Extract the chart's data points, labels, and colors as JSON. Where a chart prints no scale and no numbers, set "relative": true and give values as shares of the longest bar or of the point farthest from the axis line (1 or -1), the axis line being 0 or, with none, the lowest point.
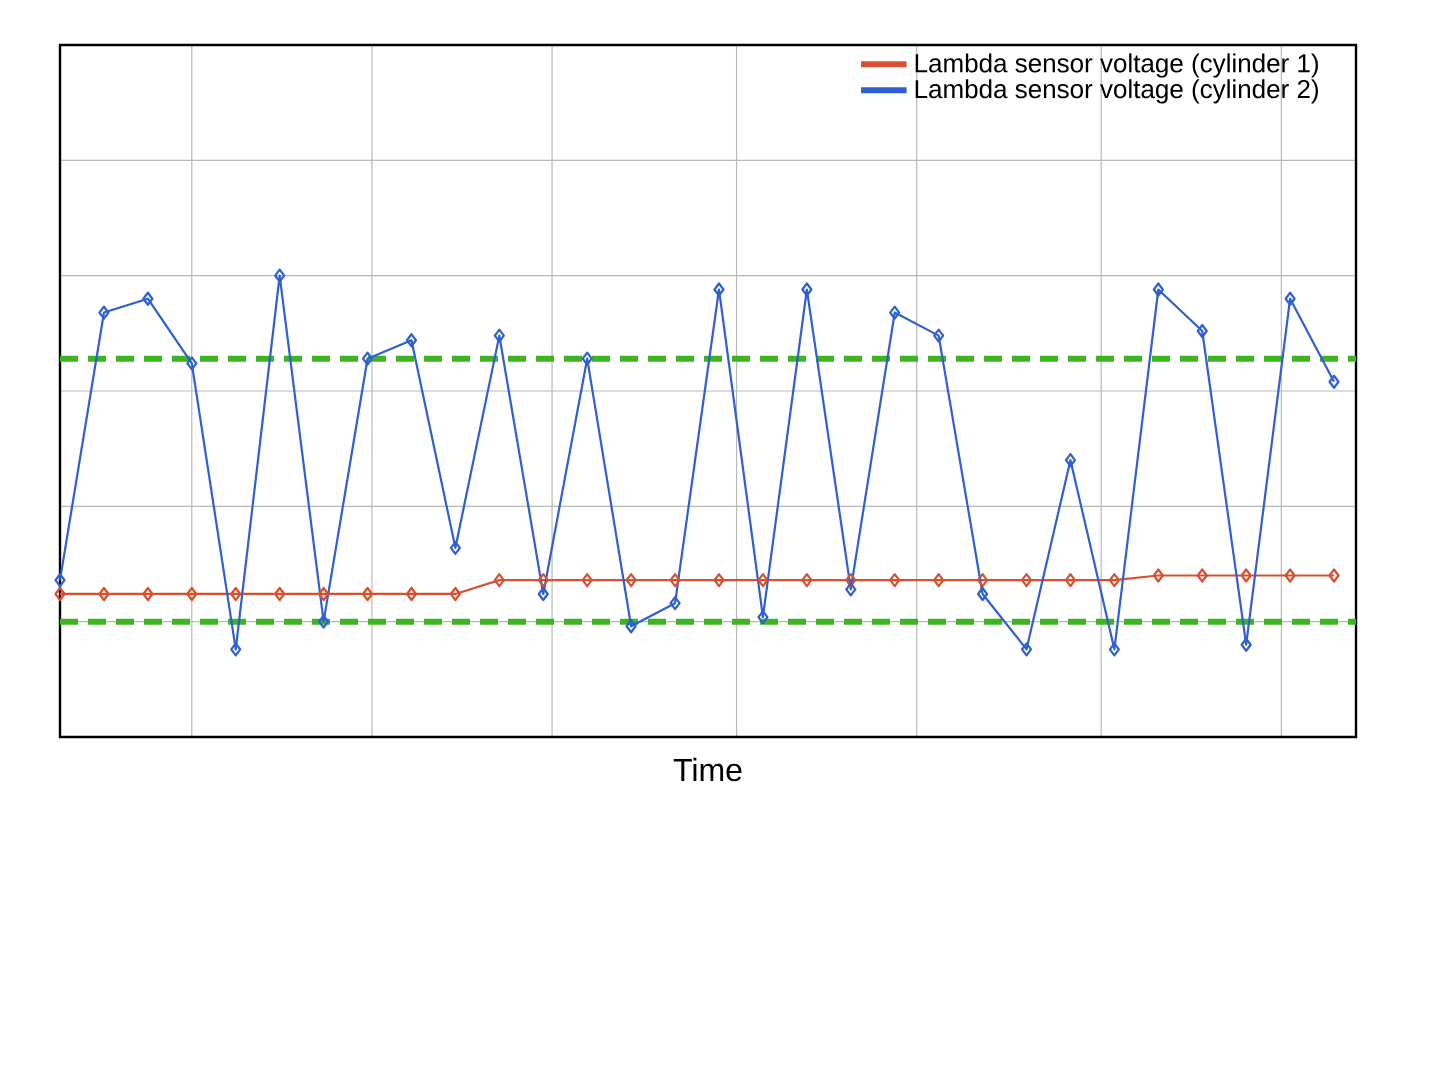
{
  "chart_data": {
    "type": "line",
    "xlabel": "Time",
    "relative": true,
    "grid": true,
    "legend": "top right",
    "marker": "diamond",
    "line_style": "solid",
    "categories": [
      null,
      null,
      null,
      null,
      null,
      null,
      null,
      null,
      null,
      null,
      null,
      null,
      null,
      null,
      null,
      null,
      null,
      null,
      null,
      null,
      null,
      null,
      null,
      null,
      null,
      null,
      null,
      null,
      null,
      null
    ],
    "series": [
      {
        "name": "Lambda sensor voltage (cylinder 1)",
        "color": "#d9502e",
        "values": [
          0.31,
          0.31,
          0.31,
          0.31,
          0.31,
          0.31,
          0.31,
          0.31,
          0.31,
          0.31,
          0.34,
          0.34,
          0.34,
          0.34,
          0.34,
          0.34,
          0.34,
          0.34,
          0.34,
          0.34,
          0.34,
          0.34,
          0.34,
          0.34,
          0.34,
          0.35,
          0.35,
          0.35,
          0.35,
          0.35
        ]
      },
      {
        "name": "Lambda sensor voltage (cylinder 2)",
        "color": "#2f5fd0",
        "values": [
          0.34,
          0.92,
          0.95,
          0.81,
          0.19,
          1.0,
          0.25,
          0.82,
          0.86,
          0.41,
          0.87,
          0.31,
          0.82,
          0.24,
          0.29,
          0.97,
          0.26,
          0.97,
          0.32,
          0.92,
          0.87,
          0.31,
          0.19,
          0.6,
          0.19,
          0.97,
          0.88,
          0.2,
          0.95,
          0.77
        ]
      }
    ],
    "ref_lines": [
      {
        "axis": "y",
        "value": 0.82,
        "color": "#3cb521",
        "line_style": "dashed"
      },
      {
        "axis": "y",
        "value": 0.25,
        "color": "#3cb521",
        "line_style": "dashed"
      }
    ]
  }
}
